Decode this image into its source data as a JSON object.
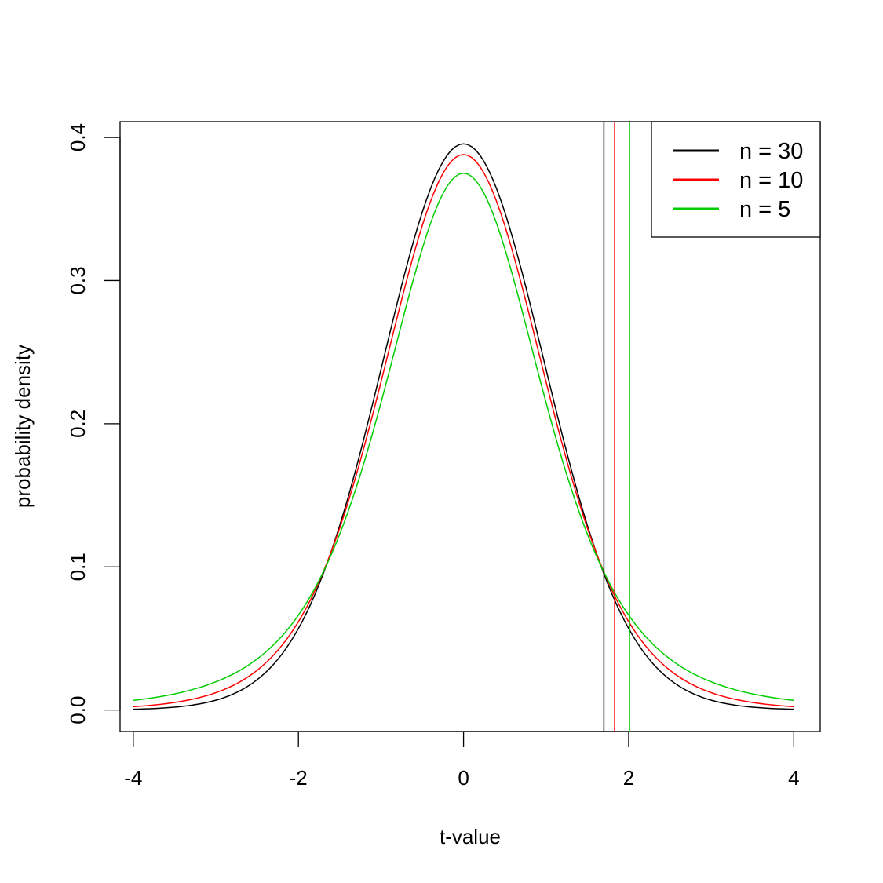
{
  "chart_data": {
    "type": "line",
    "title": "",
    "xlabel": "t-value",
    "ylabel": "probability density",
    "xlim": [
      -4.16,
      4.32
    ],
    "ylim": [
      -0.015,
      0.411
    ],
    "grid": false,
    "legend_position": "top-right",
    "x_ticks": [
      -4,
      -2,
      0,
      2,
      4
    ],
    "x_tick_labels": [
      "-4",
      "-2",
      "0",
      "2",
      "4"
    ],
    "y_ticks": [
      0.0,
      0.1,
      0.2,
      0.3,
      0.4
    ],
    "y_tick_labels": [
      "0.0",
      "0.1",
      "0.2",
      "0.3",
      "0.4"
    ],
    "series": [
      {
        "name": "n = 30",
        "color": "#000000",
        "x": [
          -4.0,
          -3.5,
          -3.0,
          -2.5,
          -2.0,
          -1.5,
          -1.0,
          -0.5,
          0.0,
          0.5,
          1.0,
          1.5,
          2.0,
          2.5,
          3.0,
          3.5,
          4.0
        ],
        "values": [
          0.0002,
          0.001,
          0.006,
          0.02,
          0.057,
          0.129,
          0.236,
          0.346,
          0.396,
          0.346,
          0.236,
          0.129,
          0.057,
          0.02,
          0.006,
          0.001,
          0.0002
        ],
        "critical_value": 1.7
      },
      {
        "name": "n = 10",
        "color": "#ff0000",
        "x": [
          -4.0,
          -3.5,
          -3.0,
          -2.5,
          -2.0,
          -1.5,
          -1.0,
          -0.5,
          0.0,
          0.5,
          1.0,
          1.5,
          2.0,
          2.5,
          3.0,
          3.5,
          4.0
        ],
        "values": [
          0.002,
          0.005,
          0.011,
          0.027,
          0.061,
          0.128,
          0.23,
          0.34,
          0.389,
          0.34,
          0.23,
          0.128,
          0.061,
          0.027,
          0.011,
          0.005,
          0.002
        ],
        "critical_value": 1.83
      },
      {
        "name": "n = 5",
        "color": "#00cc00",
        "x": [
          -4.0,
          -3.5,
          -3.0,
          -2.5,
          -2.0,
          -1.5,
          -1.0,
          -0.5,
          0.0,
          0.5,
          1.0,
          1.5,
          2.0,
          2.5,
          3.0,
          3.5,
          4.0
        ],
        "values": [
          0.005,
          0.01,
          0.018,
          0.035,
          0.067,
          0.127,
          0.22,
          0.323,
          0.38,
          0.323,
          0.22,
          0.127,
          0.067,
          0.035,
          0.018,
          0.01,
          0.005
        ],
        "critical_value": 2.01
      }
    ]
  }
}
